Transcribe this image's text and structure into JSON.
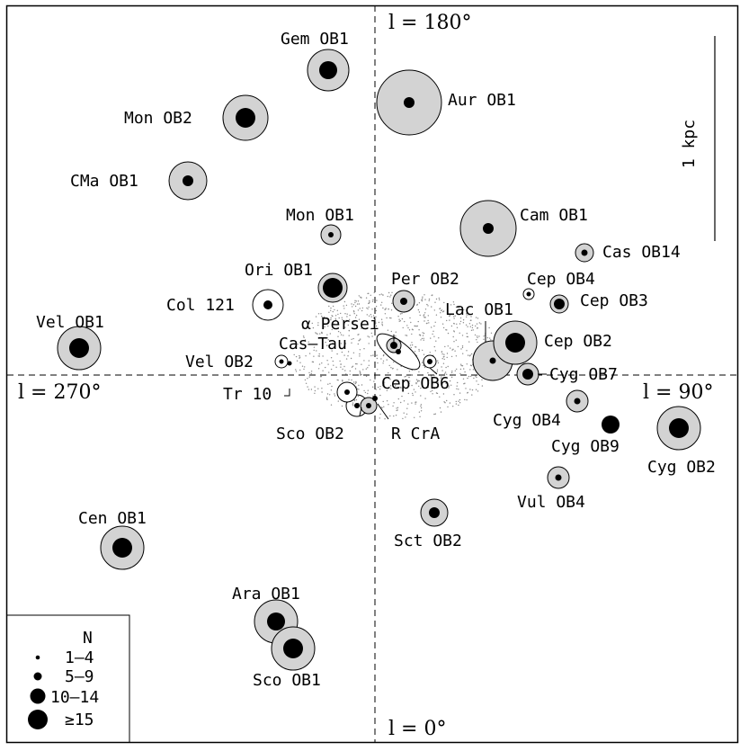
{
  "axis_labels": {
    "top": "l = 180°",
    "left": "l = 270°",
    "right": "l = 90°",
    "bottom": "l = 0°"
  },
  "scale_bar": {
    "label": "1 kpc"
  },
  "legend": {
    "title": "N",
    "entries": [
      {
        "label": "1–4",
        "size_class": 1
      },
      {
        "label": "5–9",
        "size_class": 2
      },
      {
        "label": "10–14",
        "size_class": 3
      },
      {
        "label": "≥15",
        "size_class": 4
      }
    ]
  },
  "colors": {
    "halo": "#d3d3d3",
    "dot": "#000000",
    "stroke": "#000000",
    "background": "#ffffff"
  },
  "associations": [
    {
      "name": "Gem OB1",
      "size": 3,
      "halo": true
    },
    {
      "name": "Aur OB1",
      "size": 2,
      "halo": true
    },
    {
      "name": "Mon OB2",
      "size": 3,
      "halo": true
    },
    {
      "name": "CMa OB1",
      "size": 2,
      "halo": true
    },
    {
      "name": "Mon OB1",
      "size": 1,
      "halo": true
    },
    {
      "name": "Cam OB1",
      "size": 2,
      "halo": true
    },
    {
      "name": "Cas OB14",
      "size": 1,
      "halo": true
    },
    {
      "name": "Ori OB1",
      "size": 3,
      "halo": true
    },
    {
      "name": "Per OB2",
      "size": 1,
      "halo": true
    },
    {
      "name": "Cep OB4",
      "size": 1,
      "halo": false
    },
    {
      "name": "Cep OB3",
      "size": 2,
      "halo": true
    },
    {
      "name": "Col 121",
      "size": 2,
      "halo": false
    },
    {
      "name": "α Persei",
      "size": 1,
      "halo": true
    },
    {
      "name": "Lac OB1",
      "size": 1,
      "halo": true
    },
    {
      "name": "Vel OB1",
      "size": 3,
      "halo": true
    },
    {
      "name": "Cas–Tau",
      "size": 1,
      "halo": false
    },
    {
      "name": "Cep OB2",
      "size": 3,
      "halo": true
    },
    {
      "name": "Vel OB2",
      "size": 1,
      "halo": false
    },
    {
      "name": "Cep OB6",
      "size": 1,
      "halo": false
    },
    {
      "name": "Cyg OB7",
      "size": 2,
      "halo": true
    },
    {
      "name": "Tr 10",
      "size": 1,
      "halo": false
    },
    {
      "name": "Cyg OB4",
      "size": 1,
      "halo": true
    },
    {
      "name": "Sco OB2",
      "size": 1,
      "halo": false
    },
    {
      "name": "R CrA",
      "size": 1,
      "halo": false
    },
    {
      "name": "Cyg OB9",
      "size": 3,
      "halo": false
    },
    {
      "name": "Cyg OB2",
      "size": 3,
      "halo": true
    },
    {
      "name": "Vul OB4",
      "size": 1,
      "halo": true
    },
    {
      "name": "Sct OB2",
      "size": 2,
      "halo": true
    },
    {
      "name": "Cen OB1",
      "size": 3,
      "halo": true
    },
    {
      "name": "Ara OB1",
      "size": 3,
      "halo": true
    },
    {
      "name": "Sco OB1",
      "size": 3,
      "halo": true
    }
  ]
}
